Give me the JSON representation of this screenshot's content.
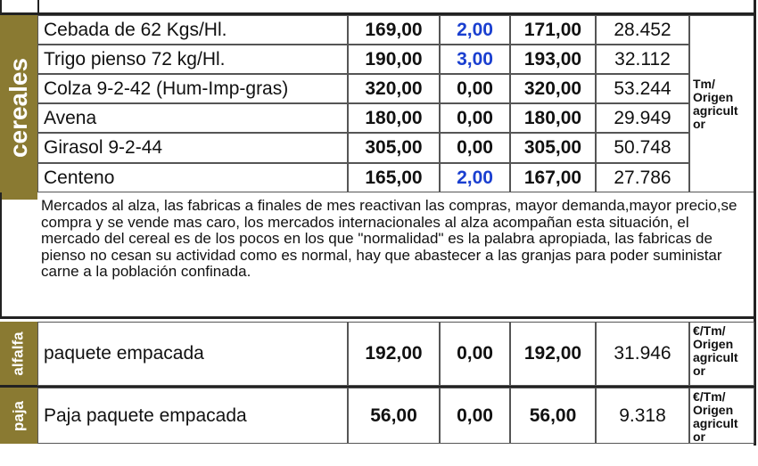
{
  "cereales": {
    "label": "cereales",
    "unit": "Tm/ Origen agricult or",
    "rows": [
      {
        "name": "Cebada de 62  Kgs/Hl.",
        "prev": "169,00",
        "change": "2,00",
        "current": "171,00",
        "pts": "28.452",
        "change_color": "blue"
      },
      {
        "name": "Trigo pienso 72 kg/Hl.",
        "prev": "190,00",
        "change": "3,00",
        "current": "193,00",
        "pts": "32.112",
        "change_color": "blue"
      },
      {
        "name": "Colza 9-2-42 (Hum-Imp-gras)",
        "prev": "320,00",
        "change": "0,00",
        "current": "320,00",
        "pts": "53.244",
        "change_color": "black"
      },
      {
        "name": "Avena",
        "prev": "180,00",
        "change": "0,00",
        "current": "180,00",
        "pts": "29.949",
        "change_color": "black"
      },
      {
        "name": "Girasol   9-2-44",
        "prev": "305,00",
        "change": "0,00",
        "current": "305,00",
        "pts": "50.748",
        "change_color": "black"
      },
      {
        "name": "Centeno",
        "prev": "165,00",
        "change": "2,00",
        "current": "167,00",
        "pts": "27.786",
        "change_color": "blue"
      }
    ]
  },
  "comment": "Mercados al alza, las fabricas a finales de mes reactivan las compras, mayor demanda,mayor precio,se compra y se vende mas caro, los mercados internacionales al alza acompañan esta situación, el mercado del cereal es de los pocos en los que \"normalidad\" es la palabra apropiada, las fabricas de pienso no cesan su actividad como es normal, hay que abastecer a las granjas para poder suministar carne a la población confinada.",
  "alfalfa": {
    "label": "alfalfa",
    "name": "paquete empacada",
    "prev": "192,00",
    "change": "0,00",
    "current": "192,00",
    "pts": "31.946",
    "unit": "€/Tm/ Origen agricult or"
  },
  "paja": {
    "label": "paja",
    "name": "Paja paquete empacada",
    "prev": "56,00",
    "change": "0,00",
    "current": "56,00",
    "pts": "9.318",
    "unit": "€/Tm/ Origen agricult or"
  },
  "colors": {
    "side": "#8a7a32",
    "blue": "#1a3fd0"
  }
}
